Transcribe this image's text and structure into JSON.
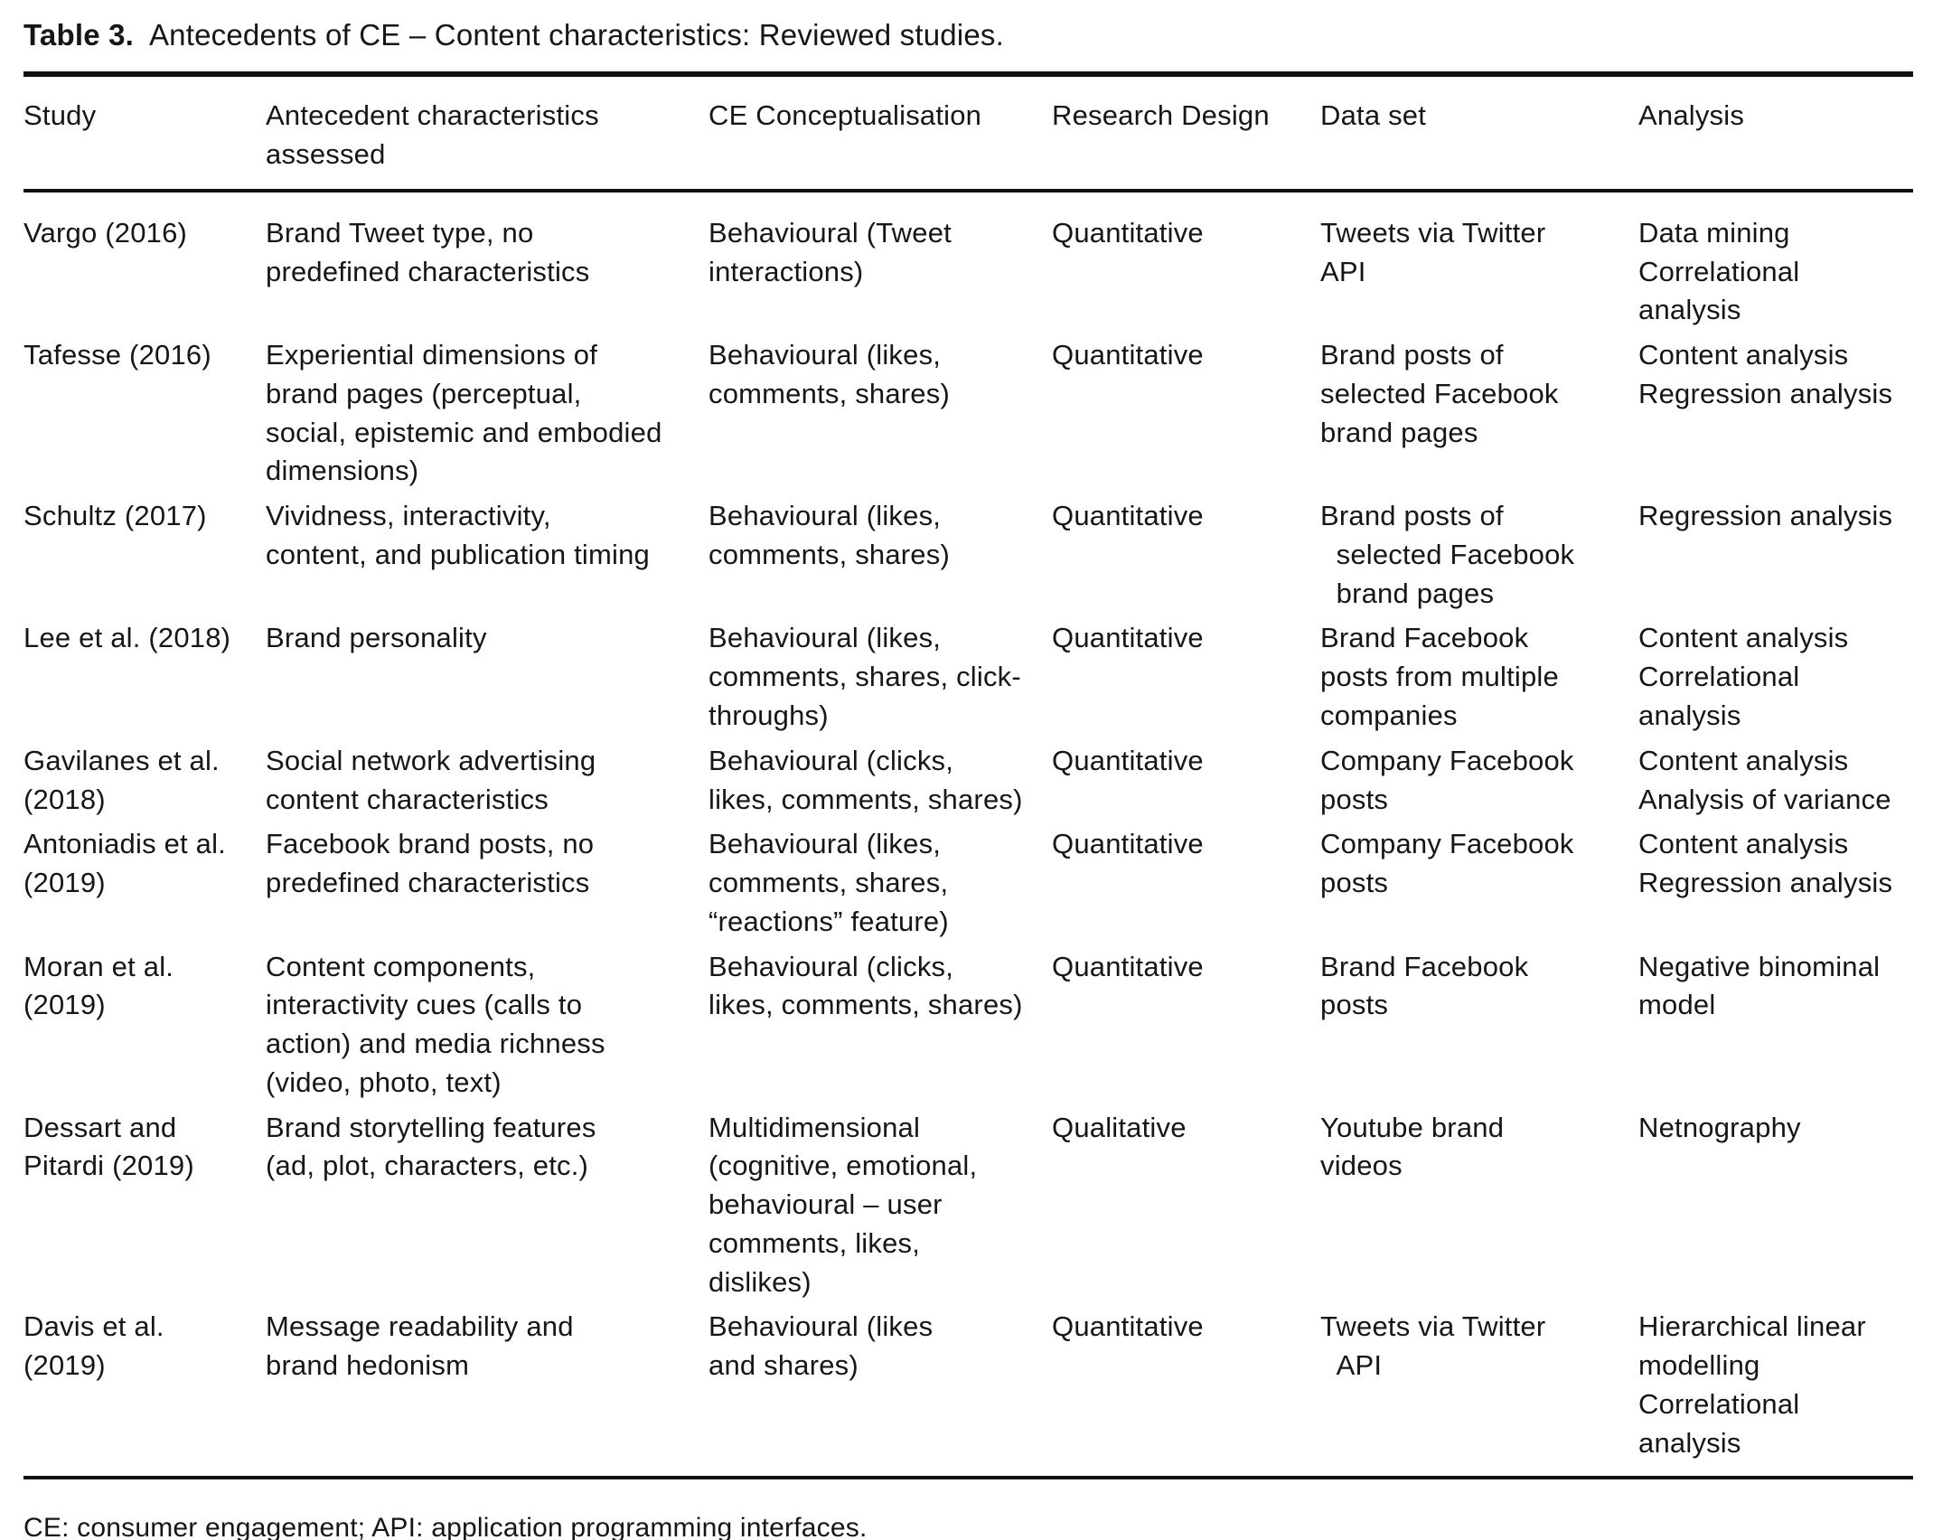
{
  "title": {
    "label": "Table 3.",
    "text": "  Antecedents of CE – Content characteristics: Reviewed studies."
  },
  "table": {
    "headers": {
      "study": "Study",
      "antecedent": "Antecedent characteristics\nassessed",
      "ce": "CE Conceptualisation",
      "design": "Research Design",
      "dataset": "Data set",
      "analysis": "Analysis"
    },
    "rows": [
      {
        "study": "Vargo (2016)",
        "antecedent": "Brand Tweet type, no\npredefined characteristics",
        "ce": "Behavioural (Tweet\ninteractions)",
        "design": "Quantitative",
        "dataset": "Tweets via Twitter\nAPI",
        "analysis": "Data mining\nCorrelational\nanalysis"
      },
      {
        "study": "Tafesse (2016)",
        "antecedent": "Experiential dimensions of\nbrand pages (perceptual,\nsocial, epistemic and embodied\ndimensions)",
        "ce": "Behavioural (likes,\ncomments, shares)",
        "design": "Quantitative",
        "dataset": "Brand posts of\nselected Facebook\nbrand pages",
        "analysis": "Content analysis\nRegression analysis"
      },
      {
        "study": "Schultz (2017)",
        "antecedent": "Vividness, interactivity,\ncontent, and publication timing",
        "ce": "Behavioural (likes,\ncomments, shares)",
        "design": "Quantitative",
        "dataset": "Brand posts of\n  selected Facebook\n  brand pages",
        "analysis": "Regression analysis"
      },
      {
        "study": "Lee et al. (2018)",
        "antecedent": "Brand personality",
        "ce": "Behavioural (likes,\ncomments, shares, click-\nthroughs)",
        "design": "Quantitative",
        "dataset": "Brand Facebook\nposts from multiple\ncompanies",
        "analysis": "Content analysis\nCorrelational\nanalysis"
      },
      {
        "study": "Gavilanes et al.\n(2018)",
        "antecedent": "Social network advertising\ncontent characteristics",
        "ce": "Behavioural (clicks,\nlikes, comments, shares)",
        "design": "Quantitative",
        "dataset": "Company Facebook\nposts",
        "analysis": "Content analysis\nAnalysis of variance"
      },
      {
        "study": "Antoniadis et al.\n(2019)",
        "antecedent": "Facebook brand posts, no\npredefined characteristics",
        "ce": "Behavioural (likes,\ncomments, shares,\n“reactions” feature)",
        "design": "Quantitative",
        "dataset": "Company Facebook\nposts",
        "analysis": "Content analysis\nRegression analysis"
      },
      {
        "study": "Moran et al.\n(2019)",
        "antecedent": "Content components,\ninteractivity cues (calls to\naction) and media richness\n(video, photo, text)",
        "ce": "Behavioural (clicks,\nlikes, comments, shares)",
        "design": "Quantitative",
        "dataset": "Brand Facebook\nposts",
        "analysis": "Negative binominal\nmodel"
      },
      {
        "study": "Dessart and\nPitardi (2019)",
        "antecedent": "Brand storytelling features\n(ad, plot, characters, etc.)",
        "ce": "Multidimensional\n(cognitive, emotional,\nbehavioural – user\ncomments, likes,\ndislikes)",
        "design": "Qualitative",
        "dataset": "Youtube brand\nvideos",
        "analysis": "Netnography"
      },
      {
        "study": "Davis et al.\n(2019)",
        "antecedent": "Message readability and\nbrand hedonism",
        "ce": "Behavioural (likes\nand shares)",
        "design": "Quantitative",
        "dataset": "Tweets via Twitter\n  API",
        "analysis": "Hierarchical linear\nmodelling\nCorrelational\nanalysis"
      }
    ]
  },
  "footnote": "CE: consumer engagement; API: application programming interfaces."
}
